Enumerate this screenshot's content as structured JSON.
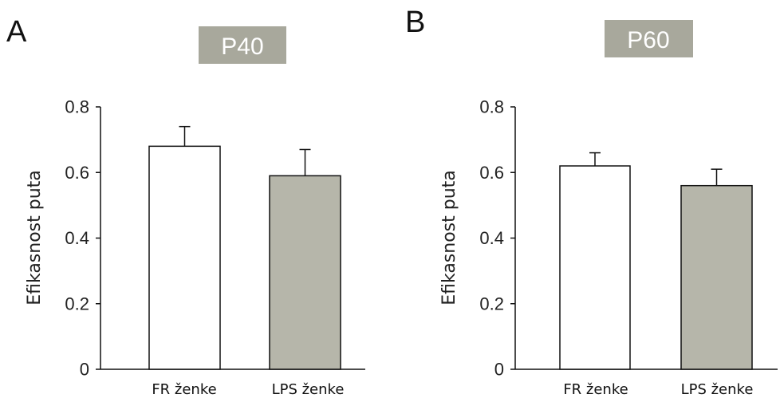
{
  "colors": {
    "title_box": "#a8a89c",
    "bar_fr": "#ffffff",
    "bar_lps": "#b6b6aa",
    "stroke": "#111111"
  },
  "chart_data": [
    {
      "type": "bar",
      "panel": "A",
      "title": "P40",
      "ylabel": "Efikasnost puta",
      "xlabel": "",
      "categories": [
        "FR ženke",
        "LPS ženke"
      ],
      "values": [
        0.68,
        0.59
      ],
      "errors": [
        0.06,
        0.08
      ],
      "ylim": [
        0,
        0.8
      ],
      "yticks": [
        0,
        0.2,
        0.4,
        0.6,
        0.8
      ],
      "ytick_labels": [
        "0",
        "0.2",
        "0.4",
        "0.6",
        "0.8"
      ],
      "grid": false,
      "legend": "none"
    },
    {
      "type": "bar",
      "panel": "B",
      "title": "P60",
      "ylabel": "Efikasnost puta",
      "xlabel": "",
      "categories": [
        "FR ženke",
        "LPS ženke"
      ],
      "values": [
        0.62,
        0.56
      ],
      "errors": [
        0.04,
        0.05
      ],
      "ylim": [
        0,
        0.8
      ],
      "yticks": [
        0,
        0.2,
        0.4,
        0.6,
        0.8
      ],
      "ytick_labels": [
        "0",
        "0.2",
        "0.4",
        "0.6",
        "0.8"
      ],
      "grid": false,
      "legend": "none"
    }
  ]
}
